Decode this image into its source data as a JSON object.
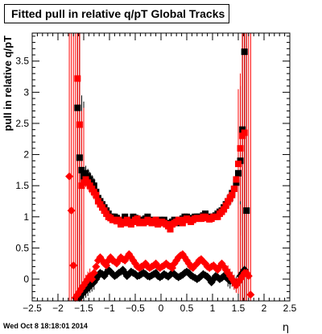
{
  "chart_data": {
    "type": "scatter",
    "title": "Fitted pull in relative q/pT  Global Tracks",
    "xlabel": "η",
    "ylabel": "pull in relative q/pT",
    "xlim": [
      -2.5,
      2.5
    ],
    "ylim": [
      -0.35,
      3.95
    ],
    "x_ticks": [
      -2.5,
      -2,
      -1.5,
      -1,
      -0.5,
      0,
      0.5,
      1,
      1.5,
      2,
      2.5
    ],
    "x_tick_labels": [
      "−2.5",
      "−2",
      "−1.5",
      "−1",
      "−0.5",
      "0",
      "0.5",
      "1",
      "1.5",
      "2",
      "2.5"
    ],
    "y_ticks": [
      0,
      0.5,
      1,
      1.5,
      2,
      2.5,
      3,
      3.5
    ],
    "y_tick_labels": [
      "0",
      "0.5",
      "1",
      "1.5",
      "2",
      "2.5",
      "3",
      "3.5"
    ],
    "grid": false,
    "series": [
      {
        "marker": "square",
        "color": "#000000",
        "x": [
          -1.62,
          -1.58,
          -1.54,
          -1.5,
          -1.46,
          -1.42,
          -1.38,
          -1.34,
          -1.3,
          -1.26,
          -1.22,
          -1.18,
          -1.14,
          -1.1,
          -1.06,
          -1.02,
          -0.98,
          -0.94,
          -0.9,
          -0.86,
          -0.82,
          -0.78,
          -0.74,
          -0.7,
          -0.66,
          -0.62,
          -0.58,
          -0.54,
          -0.5,
          -0.46,
          -0.42,
          -0.38,
          -0.34,
          -0.3,
          -0.26,
          -0.22,
          -0.18,
          -0.14,
          -0.1,
          -0.06,
          -0.02,
          0.02,
          0.06,
          0.1,
          0.14,
          0.18,
          0.22,
          0.26,
          0.3,
          0.34,
          0.38,
          0.42,
          0.46,
          0.5,
          0.54,
          0.58,
          0.62,
          0.66,
          0.7,
          0.74,
          0.78,
          0.82,
          0.86,
          0.9,
          0.94,
          0.98,
          1.02,
          1.06,
          1.1,
          1.14,
          1.18,
          1.22,
          1.26,
          1.3,
          1.34,
          1.38,
          1.42,
          1.46,
          1.5,
          1.54,
          1.58,
          1.62,
          1.66
        ],
        "y": [
          2.75,
          1.95,
          1.75,
          1.65,
          1.7,
          1.65,
          1.6,
          1.55,
          1.5,
          1.4,
          1.3,
          1.25,
          1.2,
          1.15,
          1.1,
          1.05,
          1.0,
          1.0,
          1.0,
          0.98,
          0.95,
          0.9,
          0.92,
          1.0,
          0.95,
          0.9,
          0.95,
          1.0,
          0.98,
          0.97,
          0.95,
          0.95,
          0.9,
          0.97,
          1.0,
          0.95,
          0.92,
          0.93,
          0.95,
          0.9,
          0.95,
          0.9,
          0.95,
          0.9,
          0.88,
          0.9,
          0.92,
          0.95,
          0.9,
          0.93,
          0.95,
          0.97,
          1.0,
          1.0,
          0.98,
          0.95,
          0.97,
          1.0,
          1.0,
          1.0,
          1.0,
          1.02,
          1.05,
          1.0,
          0.98,
          1.0,
          1.0,
          1.02,
          1.05,
          1.08,
          1.1,
          1.15,
          1.2,
          1.25,
          1.3,
          1.38,
          1.45,
          1.55,
          1.7,
          1.9,
          2.4,
          3.65,
          1.1
        ]
      },
      {
        "marker": "square",
        "color": "#ff0000",
        "x": [
          -1.62,
          -1.58,
          -1.54,
          -1.5,
          -1.46,
          -1.42,
          -1.38,
          -1.34,
          -1.3,
          -1.26,
          -1.22,
          -1.18,
          -1.14,
          -1.1,
          -1.06,
          -1.02,
          -0.98,
          -0.94,
          -0.9,
          -0.86,
          -0.82,
          -0.78,
          -0.74,
          -0.7,
          -0.66,
          -0.62,
          -0.58,
          -0.54,
          -0.5,
          -0.46,
          -0.42,
          -0.38,
          -0.34,
          -0.3,
          -0.26,
          -0.22,
          -0.18,
          -0.14,
          -0.1,
          -0.06,
          -0.02,
          0.02,
          0.06,
          0.1,
          0.14,
          0.18,
          0.22,
          0.26,
          0.3,
          0.34,
          0.38,
          0.42,
          0.46,
          0.5,
          0.54,
          0.58,
          0.62,
          0.66,
          0.7,
          0.74,
          0.78,
          0.82,
          0.86,
          0.9,
          0.94,
          0.98,
          1.02,
          1.06,
          1.1,
          1.14,
          1.18,
          1.22,
          1.26,
          1.3,
          1.34,
          1.38,
          1.42,
          1.46,
          1.5,
          1.54,
          1.58,
          1.62
        ],
        "y": [
          3.22,
          2.48,
          1.5,
          1.55,
          1.6,
          1.55,
          1.5,
          1.45,
          1.4,
          1.35,
          1.25,
          1.2,
          1.15,
          1.1,
          1.05,
          1.0,
          0.98,
          0.95,
          0.95,
          0.93,
          0.95,
          0.88,
          0.9,
          0.92,
          0.95,
          0.9,
          0.88,
          0.92,
          0.95,
          0.97,
          0.9,
          0.92,
          0.9,
          0.92,
          0.95,
          0.93,
          0.9,
          0.93,
          0.95,
          0.88,
          0.9,
          0.92,
          0.9,
          0.88,
          0.85,
          0.8,
          0.88,
          0.9,
          0.92,
          0.95,
          0.93,
          0.9,
          0.95,
          0.97,
          0.95,
          0.92,
          0.95,
          0.97,
          0.98,
          0.97,
          0.97,
          1.0,
          1.0,
          0.98,
          0.96,
          0.97,
          1.0,
          1.0,
          1.0,
          1.05,
          1.08,
          1.12,
          1.18,
          1.25,
          1.3,
          1.35,
          1.45,
          1.6,
          1.85,
          2.1,
          2.3,
          2.35
        ]
      },
      {
        "marker": "diamond",
        "color": "#000000",
        "x": [
          -1.58,
          -1.54,
          -1.5,
          -1.46,
          -1.42,
          -1.38,
          -1.34,
          -1.3,
          -1.26,
          -1.22,
          -1.18,
          -1.14,
          -1.1,
          -1.06,
          -1.02,
          -0.98,
          -0.94,
          -0.9,
          -0.86,
          -0.82,
          -0.78,
          -0.74,
          -0.7,
          -0.66,
          -0.62,
          -0.58,
          -0.54,
          -0.5,
          -0.46,
          -0.42,
          -0.38,
          -0.34,
          -0.3,
          -0.26,
          -0.22,
          -0.18,
          -0.14,
          -0.1,
          -0.06,
          -0.02,
          0.02,
          0.06,
          0.1,
          0.14,
          0.18,
          0.22,
          0.26,
          0.3,
          0.34,
          0.38,
          0.42,
          0.46,
          0.5,
          0.54,
          0.58,
          0.62,
          0.66,
          0.7,
          0.74,
          0.78,
          0.82,
          0.86,
          0.9,
          0.94,
          0.98,
          1.02,
          1.06,
          1.1,
          1.14,
          1.18,
          1.22,
          1.26,
          1.3,
          1.34,
          1.38,
          1.42,
          1.46,
          1.5,
          1.54,
          1.58,
          1.62
        ],
        "y": [
          -0.3,
          -0.25,
          -0.2,
          -0.18,
          -0.15,
          -0.1,
          -0.08,
          -0.05,
          0.0,
          0.05,
          0.1,
          0.08,
          0.05,
          0.1,
          0.15,
          0.12,
          0.08,
          0.05,
          0.07,
          0.1,
          0.12,
          0.15,
          0.1,
          0.05,
          0.08,
          0.12,
          0.1,
          0.08,
          0.05,
          0.06,
          0.08,
          0.1,
          0.08,
          0.05,
          0.04,
          0.06,
          0.08,
          0.1,
          0.05,
          0.03,
          0.05,
          0.08,
          0.06,
          0.04,
          0.07,
          0.1,
          0.08,
          0.05,
          0.03,
          0.05,
          0.07,
          0.1,
          0.12,
          0.1,
          0.06,
          0.04,
          0.02,
          0.0,
          0.02,
          0.05,
          0.08,
          0.06,
          0.04,
          0.0,
          -0.05,
          0.0,
          0.05,
          0.03,
          0.0,
          0.02,
          0.05,
          0.03,
          0.0,
          -0.03,
          0.0,
          -0.05,
          -0.08,
          -0.05,
          0.05,
          0.1,
          0.15
        ]
      },
      {
        "marker": "diamond",
        "color": "#ff0000",
        "x": [
          -1.78,
          -1.74,
          -1.7,
          -1.66,
          -1.62,
          -1.58,
          -1.54,
          -1.5,
          -1.46,
          -1.42,
          -1.38,
          -1.34,
          -1.3,
          -1.26,
          -1.22,
          -1.18,
          -1.14,
          -1.1,
          -1.06,
          -1.02,
          -0.98,
          -0.94,
          -0.9,
          -0.86,
          -0.82,
          -0.78,
          -0.74,
          -0.7,
          -0.66,
          -0.62,
          -0.58,
          -0.54,
          -0.5,
          -0.46,
          -0.42,
          -0.38,
          -0.34,
          -0.3,
          -0.26,
          -0.22,
          -0.18,
          -0.14,
          -0.1,
          -0.06,
          -0.02,
          0.02,
          0.06,
          0.1,
          0.14,
          0.18,
          0.22,
          0.26,
          0.3,
          0.34,
          0.38,
          0.42,
          0.46,
          0.5,
          0.54,
          0.58,
          0.62,
          0.66,
          0.7,
          0.74,
          0.78,
          0.82,
          0.86,
          0.9,
          0.94,
          0.98,
          1.02,
          1.06,
          1.1,
          1.14,
          1.18,
          1.22,
          1.26,
          1.3,
          1.34,
          1.38,
          1.42,
          1.46,
          1.5,
          1.54,
          1.58,
          1.62,
          1.66,
          1.7,
          1.74
        ],
        "y": [
          1.65,
          1.1,
          0.22,
          -0.3,
          -0.25,
          -0.2,
          -0.15,
          -0.1,
          -0.05,
          0.0,
          0.05,
          0.0,
          0.1,
          0.2,
          0.3,
          0.35,
          0.3,
          0.25,
          0.22,
          0.3,
          0.35,
          0.3,
          0.28,
          0.25,
          0.3,
          0.35,
          0.32,
          0.3,
          0.35,
          0.4,
          0.35,
          0.3,
          0.25,
          0.2,
          0.18,
          0.2,
          0.22,
          0.25,
          0.2,
          0.18,
          0.2,
          0.22,
          0.25,
          0.2,
          0.18,
          0.2,
          0.22,
          0.25,
          0.22,
          0.2,
          0.18,
          0.25,
          0.3,
          0.35,
          0.38,
          0.4,
          0.35,
          0.3,
          0.25,
          0.2,
          0.18,
          0.22,
          0.25,
          0.3,
          0.32,
          0.28,
          0.25,
          0.2,
          0.18,
          0.2,
          0.22,
          0.18,
          0.15,
          0.2,
          0.25,
          0.2,
          0.15,
          0.1,
          0.05,
          0.0,
          -0.05,
          -0.1,
          -0.05,
          0.0,
          0.05,
          0.1,
          0.1,
          0.05,
          -0.25
        ]
      }
    ]
  },
  "footer": {
    "timestamp": "Wed Oct  8 18:18:01 2014"
  }
}
